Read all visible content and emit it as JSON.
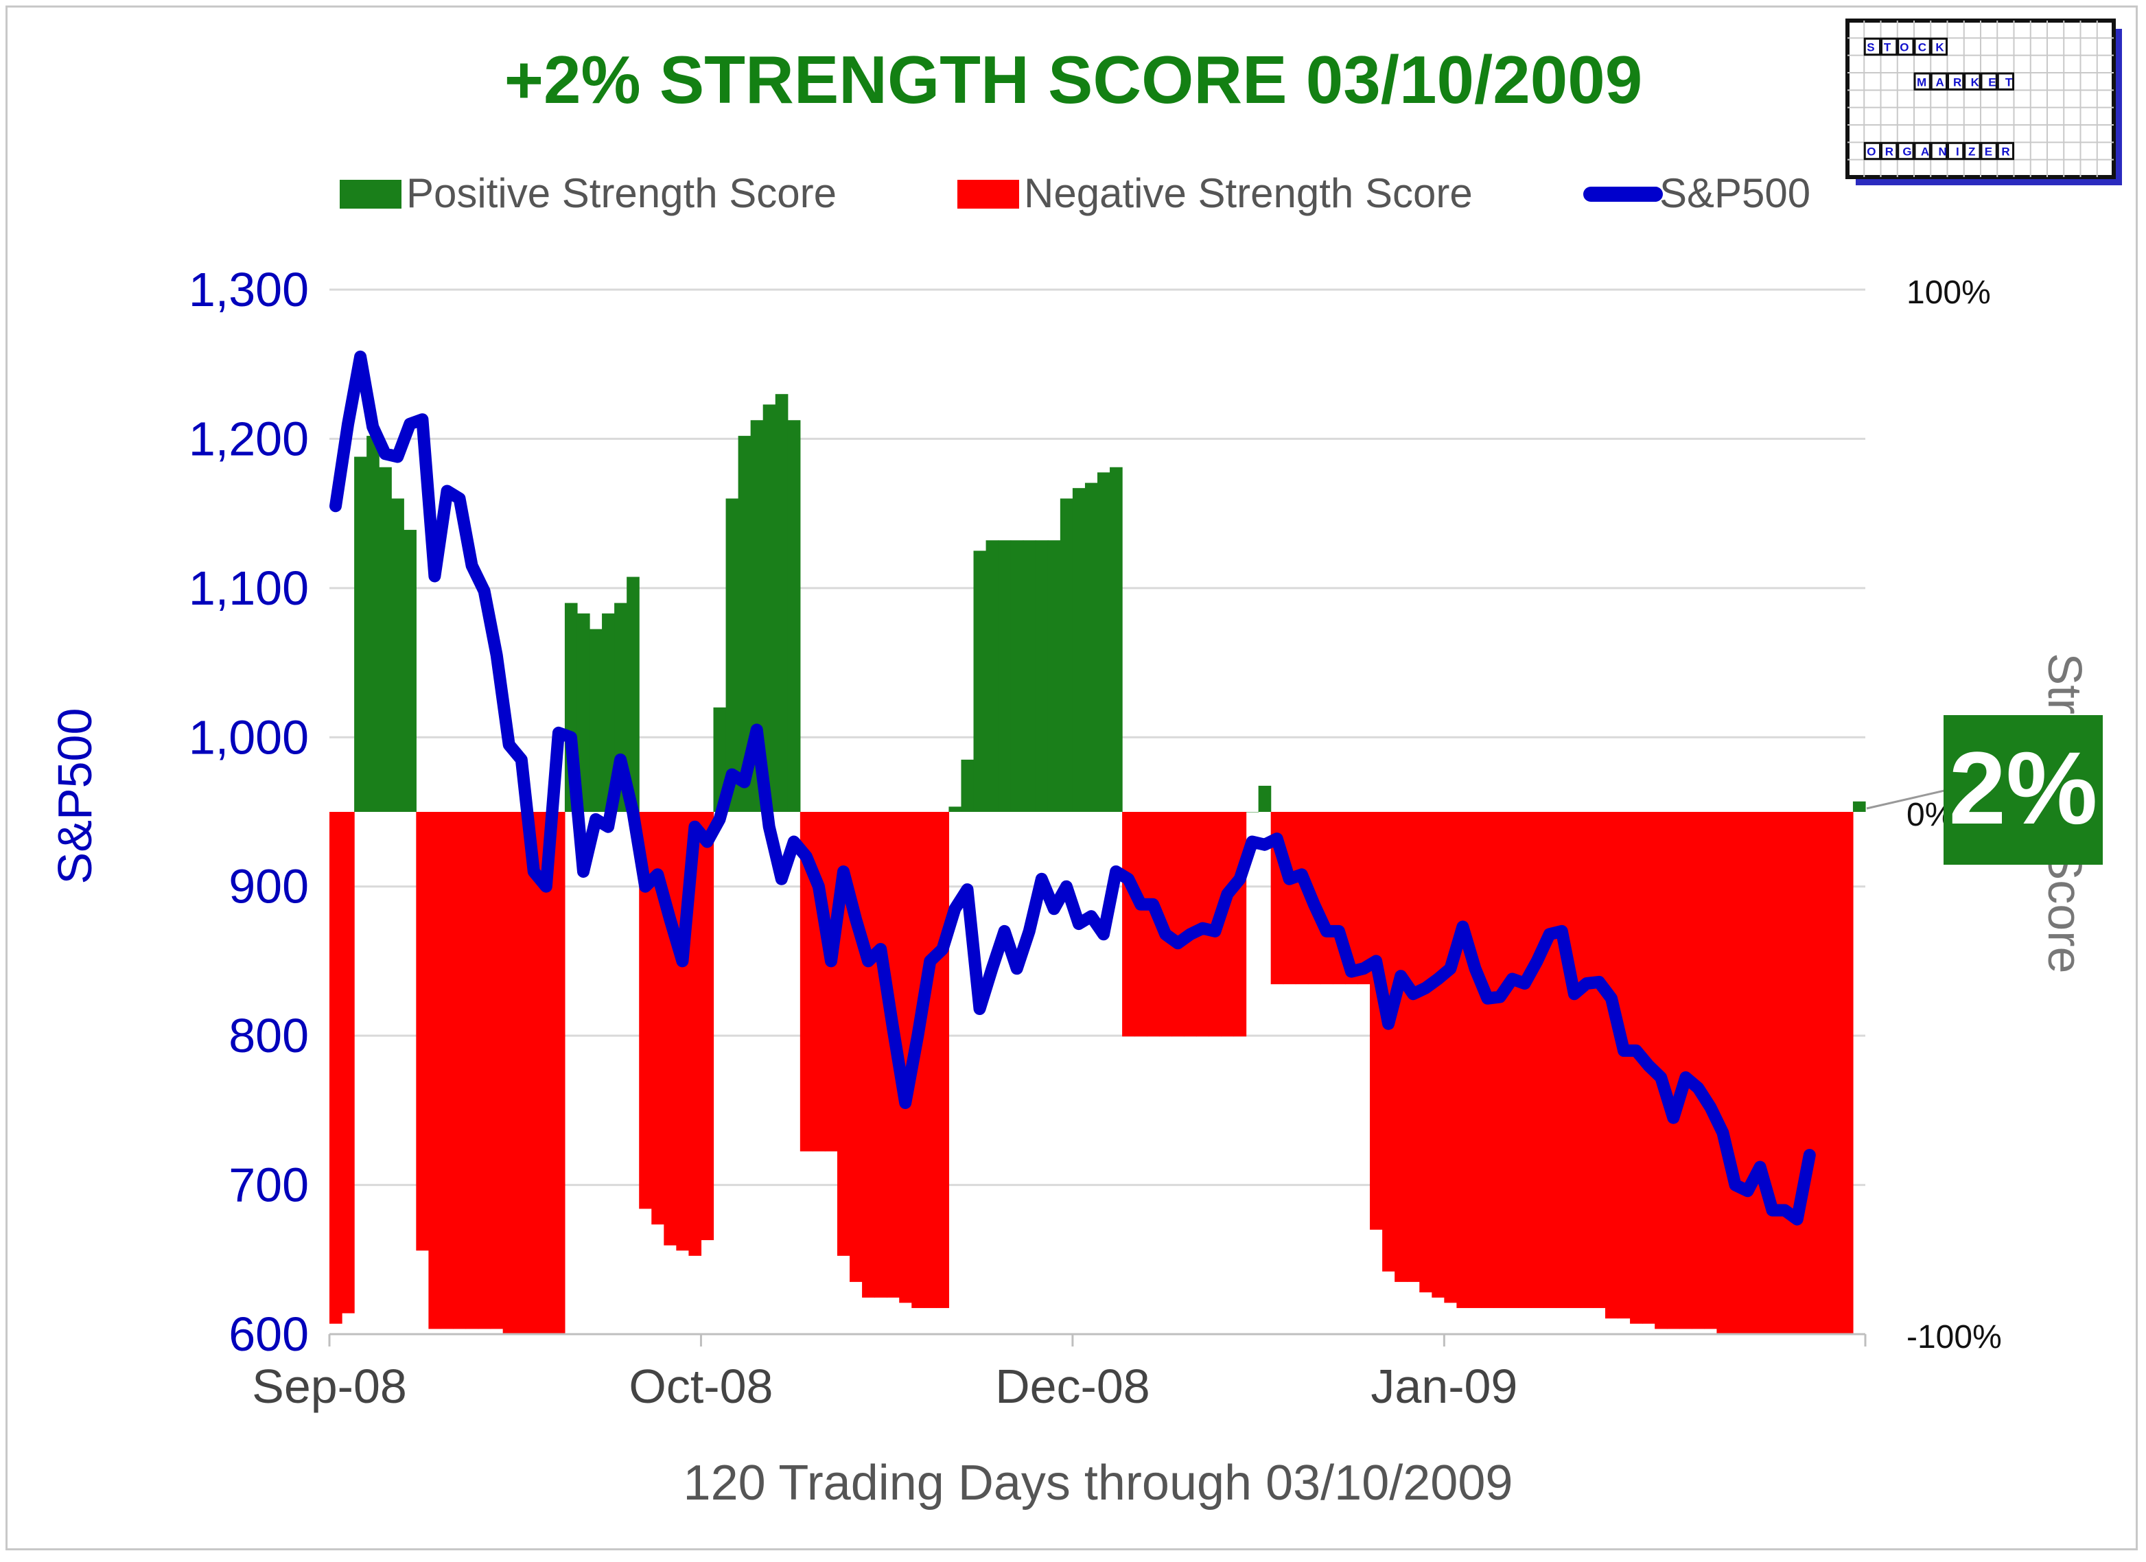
{
  "chart_data": {
    "type": "bar+line",
    "title": "+2% STRENGTH SCORE 03/10/2009",
    "xlabel": "120 Trading Days through 03/10/2009",
    "ylabel_left": "S&P500",
    "ylabel_right": "Strength Score",
    "x_tick_labels": [
      "Sep-08",
      "Oct-08",
      "Dec-08",
      "Jan-09"
    ],
    "y_left": {
      "range": [
        600,
        1300
      ],
      "ticks": [
        "600",
        "700",
        "800",
        "900",
        "1,000",
        "1,100",
        "1,200",
        "1,300"
      ]
    },
    "y_right": {
      "range": [
        -100,
        100
      ],
      "tick_labels": [
        "-100%",
        "0%",
        "100%"
      ]
    },
    "grid": true,
    "legend": {
      "placement": "top",
      "entries": [
        {
          "name": "Positive Strength Score",
          "color": "#1a7f1a"
        },
        {
          "name": "Negative Strength Score",
          "color": "#ff0000"
        },
        {
          "name": "S&P500",
          "color": "#0000cc"
        }
      ]
    },
    "colors": {
      "positive": "#1a7f1a",
      "negative": "#ff0000",
      "line": "#0000cc",
      "title": "#138013",
      "axis_text": "#444444",
      "left_axis": "#0000bb"
    },
    "series": [
      {
        "name": "Strength Score (%)",
        "values": [
          -98,
          -96,
          68,
          72,
          66,
          60,
          54,
          -84,
          -99,
          -99,
          -99,
          -99,
          -99,
          -99,
          -100,
          -100,
          -100,
          -100,
          -100,
          40,
          38,
          35,
          38,
          40,
          45,
          -76,
          -79,
          -83,
          -84,
          -85,
          -82,
          20,
          60,
          72,
          75,
          78,
          80,
          75,
          -65,
          -65,
          -65,
          -85,
          -90,
          -93,
          -93,
          -93,
          -94,
          -95,
          -95,
          -95,
          1,
          10,
          50,
          52,
          52,
          52,
          52,
          52,
          52,
          60,
          62,
          63,
          65,
          66,
          -43,
          -43,
          -43,
          -43,
          -43,
          -43,
          -43,
          -43,
          -43,
          -43,
          0,
          5,
          -33,
          -33,
          -33,
          -33,
          -33,
          -33,
          -33,
          -33,
          -80,
          -88,
          -90,
          -90,
          -92,
          -93,
          -94,
          -95,
          -95,
          -95,
          -95,
          -95,
          -95,
          -95,
          -95,
          -95,
          -95,
          -95,
          -95,
          -97,
          -97,
          -98,
          -98,
          -99,
          -99,
          -99,
          -99,
          -99,
          -100,
          -100,
          -100,
          -100,
          -100,
          -100,
          -100,
          -100,
          -100,
          -100,
          -100,
          2
        ],
        "segments": "See bars"
      },
      {
        "name": "S&P500",
        "values": [
          1155,
          1210,
          1255,
          1208,
          1190,
          1188,
          1210,
          1213,
          1108,
          1165,
          1160,
          1115,
          1098,
          1055,
          995,
          985,
          910,
          900,
          1003,
          1000,
          910,
          945,
          940,
          985,
          950,
          900,
          908,
          878,
          850,
          940,
          930,
          945,
          975,
          970,
          1005,
          940,
          905,
          930,
          920,
          900,
          850,
          910,
          878,
          850,
          858,
          805,
          755,
          800,
          850,
          858,
          885,
          898,
          818,
          845,
          870,
          845,
          870,
          905,
          885,
          900,
          875,
          880,
          868,
          910,
          905,
          888,
          888,
          868,
          862,
          868,
          872,
          870,
          895,
          905,
          930,
          928,
          932,
          905,
          908,
          888,
          870,
          870,
          843,
          845,
          850,
          808,
          840,
          828,
          832,
          838,
          845,
          873,
          845,
          825,
          826,
          838,
          835,
          850,
          868,
          870,
          828,
          835,
          836,
          825,
          790,
          790,
          780,
          772,
          745,
          772,
          765,
          752,
          735,
          700,
          696,
          712,
          683,
          683,
          677,
          720
        ],
        "segments": "x_ticks_at"
      }
    ],
    "x_tick_index": [
      0,
      30,
      60,
      90
    ],
    "callout": {
      "text": "2%",
      "color": "#1a7f1a",
      "text_color": "#ffffff"
    },
    "logo": {
      "line1": "STOCK",
      "line2": "MARKET",
      "line3": "ORGANIZER"
    }
  }
}
